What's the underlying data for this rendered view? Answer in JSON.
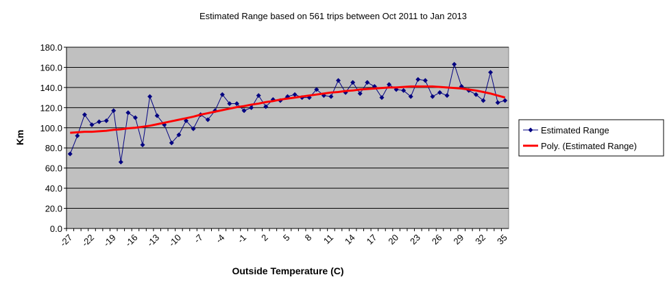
{
  "chart_data": {
    "type": "line",
    "title": "Estimated Range based on 561 trips between Oct 2011 to Jan 2013",
    "x_label": "Outside Temperature (C)",
    "y_label": "Km",
    "categories": [
      -27,
      null,
      null,
      -22,
      null,
      null,
      -19,
      null,
      null,
      -16,
      null,
      null,
      -13,
      null,
      null,
      -10,
      null,
      null,
      -7,
      null,
      null,
      -4,
      null,
      null,
      -1,
      null,
      null,
      2,
      null,
      null,
      5,
      null,
      null,
      8,
      null,
      null,
      11,
      null,
      null,
      14,
      null,
      null,
      17,
      null,
      null,
      20,
      null,
      null,
      23,
      null,
      null,
      26,
      null,
      null,
      29,
      null,
      null,
      32,
      null,
      null,
      35
    ],
    "series": [
      {
        "name": "Estimated Range",
        "color": "#000080",
        "marker": "diamond",
        "values": [
          74,
          92,
          113,
          103,
          106,
          107,
          117,
          66,
          115,
          110,
          83,
          131,
          112,
          103,
          85,
          93,
          107,
          99,
          113,
          108,
          117,
          133,
          124,
          124,
          117,
          120,
          132,
          121,
          128,
          127,
          131,
          133,
          130,
          130,
          138,
          132,
          131,
          147,
          135,
          145,
          134,
          145,
          141,
          130,
          143,
          138,
          137,
          131,
          148,
          147,
          131,
          135,
          132,
          163,
          141,
          137,
          133,
          127,
          155,
          125,
          127
        ]
      },
      {
        "name": "Poly. (Estimated Range)",
        "color": "#ff0000",
        "marker": "none",
        "values": [
          95,
          95.5,
          96,
          96,
          96.5,
          97,
          98,
          98.5,
          99.5,
          100,
          101,
          102,
          103.5,
          105,
          106.5,
          108,
          109.5,
          111,
          113,
          114.5,
          116,
          117.5,
          119,
          120.5,
          121.5,
          123,
          124,
          125.5,
          126.5,
          128,
          129,
          130,
          131,
          132,
          133,
          134,
          135,
          135.5,
          136.5,
          137,
          138,
          138.5,
          139,
          139.5,
          140,
          140,
          140.5,
          141,
          141,
          141,
          141,
          140.5,
          140,
          139.5,
          139,
          138,
          137,
          135.5,
          134,
          132,
          130
        ]
      }
    ],
    "ylim": [
      0,
      180
    ],
    "yticks": [
      {
        "value": 0,
        "label": "0.0"
      },
      {
        "value": 20,
        "label": "20.0"
      },
      {
        "value": 40,
        "label": "40.0"
      },
      {
        "value": 60,
        "label": "60.0"
      },
      {
        "value": 80,
        "label": "80.0"
      },
      {
        "value": 100,
        "label": "100.0"
      },
      {
        "value": 120,
        "label": "120.0"
      },
      {
        "value": 140,
        "label": "140.0"
      },
      {
        "value": 160,
        "label": "160.0"
      },
      {
        "value": 180,
        "label": "180.0"
      }
    ],
    "grid": true,
    "legend": "right"
  }
}
